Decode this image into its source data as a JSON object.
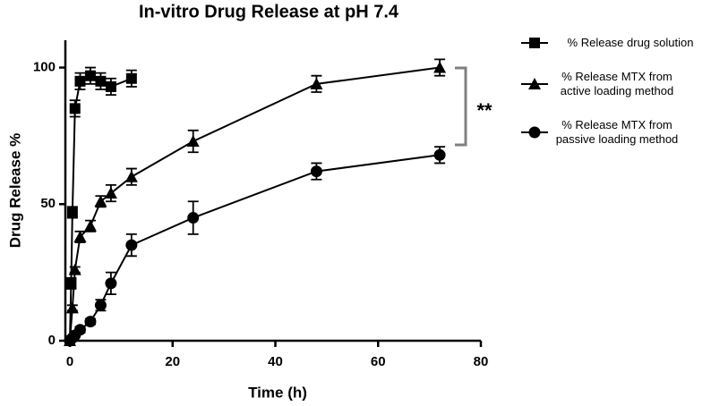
{
  "chart_data": {
    "type": "line",
    "title": "In-vitro Drug Release at pH 7.4",
    "x_label": "Time (h)",
    "y_label": "Drug Release %",
    "xlim": [
      0,
      80
    ],
    "xticks": [
      0,
      20,
      40,
      60,
      80
    ],
    "ylim": [
      0,
      110
    ],
    "yticks": [
      0,
      50,
      100
    ],
    "annotation": "**",
    "series": [
      {
        "name": "% Release drug solution",
        "color": "#000000",
        "marker": "square",
        "x": [
          0,
          0.25,
          0.5,
          1,
          2,
          4,
          6,
          8,
          12
        ],
        "values": [
          0,
          21,
          47,
          85,
          95,
          97,
          95,
          93,
          96
        ],
        "errors": [
          0,
          2,
          2,
          3,
          3,
          3,
          3,
          3,
          3
        ]
      },
      {
        "name": "% Release MTX from active loading method",
        "color": "#000000",
        "marker": "triangle",
        "x": [
          0,
          0.5,
          1,
          2,
          4,
          6,
          8,
          12,
          24,
          48,
          72
        ],
        "values": [
          0,
          12,
          26,
          38,
          42,
          51,
          54,
          60,
          73,
          94,
          100
        ],
        "errors": [
          0,
          1,
          1,
          2,
          2,
          2,
          3,
          3,
          4,
          3,
          3
        ]
      },
      {
        "name": "% Release MTX  from passive loading method",
        "color": "#000000",
        "marker": "circle",
        "x": [
          0,
          0.5,
          1,
          2,
          4,
          6,
          8,
          12,
          24,
          48,
          72
        ],
        "values": [
          0,
          1,
          2,
          4,
          7,
          13,
          21,
          35,
          45,
          62,
          68
        ],
        "errors": [
          0,
          0.5,
          0.5,
          1,
          1,
          2,
          4,
          4,
          6,
          3,
          3
        ]
      }
    ]
  }
}
